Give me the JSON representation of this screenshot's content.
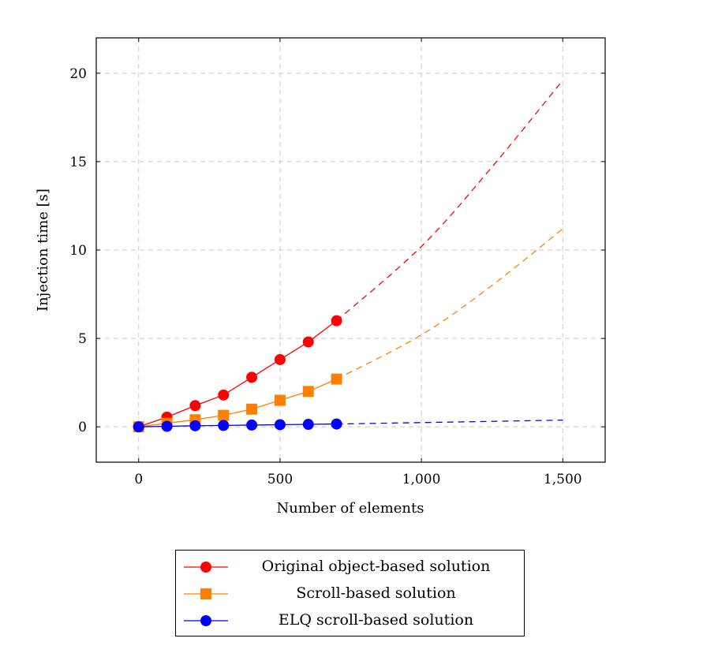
{
  "chart_data": {
    "type": "line",
    "xlabel": "Number of elements",
    "ylabel": "Injection time [s]",
    "xlim": [
      -150,
      1650
    ],
    "ylim": [
      -2,
      22
    ],
    "xticks": [
      0,
      500,
      1000,
      1500
    ],
    "xtick_labels": [
      "0",
      "500",
      "1,000",
      "1,500"
    ],
    "yticks": [
      0,
      5,
      10,
      15,
      20
    ],
    "ytick_labels": [
      "0",
      "5",
      "10",
      "15",
      "20"
    ],
    "grid": true,
    "legend_position": "bottom-center",
    "series": [
      {
        "name": "Original object-based solution",
        "color": "#ff0000",
        "marker": "circle",
        "x": [
          0,
          100,
          200,
          300,
          400,
          500,
          600,
          700
        ],
        "y": [
          0.0,
          0.55,
          1.2,
          1.8,
          2.8,
          3.8,
          4.8,
          6.0
        ],
        "trend": {
          "style": "dashed",
          "x_from": 700,
          "x_to": 1500,
          "y": [
            6.0,
            10.2,
            14.7,
            19.6
          ],
          "x": [
            700,
            1000,
            1250,
            1500
          ]
        }
      },
      {
        "name": "Scroll-based solution",
        "color": "#ff8000",
        "marker": "square",
        "x": [
          0,
          100,
          200,
          300,
          400,
          500,
          600,
          700
        ],
        "y": [
          0.0,
          0.2,
          0.4,
          0.65,
          1.0,
          1.5,
          2.0,
          2.7
        ],
        "trend": {
          "style": "dashed",
          "x": [
            700,
            1000,
            1250,
            1500
          ],
          "y": [
            2.7,
            5.2,
            8.0,
            11.2
          ]
        }
      },
      {
        "name": "ELQ scroll-based solution",
        "color": "#0000ff",
        "marker": "circle",
        "x": [
          0,
          100,
          200,
          300,
          400,
          500,
          600,
          700
        ],
        "y": [
          0.0,
          0.03,
          0.06,
          0.08,
          0.1,
          0.12,
          0.14,
          0.16
        ],
        "trend": {
          "style": "dashed",
          "x": [
            700,
            1000,
            1250,
            1500
          ],
          "y": [
            0.16,
            0.24,
            0.31,
            0.38
          ]
        }
      }
    ]
  }
}
